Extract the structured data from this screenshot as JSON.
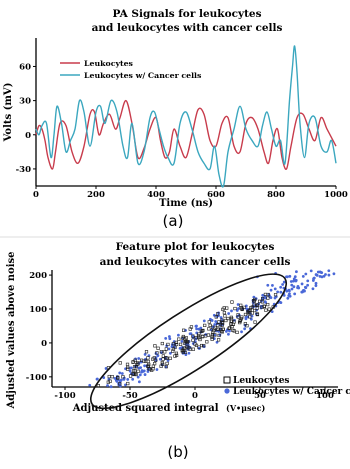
{
  "chart_data": [
    {
      "type": "line",
      "panel_label": "(a)",
      "title": [
        "PA Signals for leukocytes",
        "and leukocytes with cancer cells"
      ],
      "xlabel": "Time (ns)",
      "ylabel": "Volts (mV)",
      "xlim": [
        0,
        1000
      ],
      "ylim": [
        -45,
        85
      ],
      "xticks": [
        0,
        200,
        400,
        600,
        800,
        1000
      ],
      "yticks": [
        -30,
        0,
        30,
        60
      ],
      "legend_position": "top-left",
      "colors": {
        "leukocytes": "#c83c4c",
        "cancer": "#3ba7bf"
      },
      "series": [
        {
          "name": "Leukocytes",
          "x": [
            0,
            10,
            20,
            30,
            40,
            55,
            65,
            80,
            100,
            120,
            140,
            160,
            180,
            195,
            210,
            225,
            245,
            265,
            280,
            300,
            320,
            340,
            360,
            380,
            400,
            415,
            430,
            445,
            460,
            480,
            500,
            520,
            540,
            560,
            580,
            600,
            620,
            640,
            660,
            680,
            700,
            720,
            740,
            760,
            775,
            790,
            805,
            820,
            835,
            850,
            870,
            890,
            910,
            930,
            950,
            970,
            990,
            1000
          ],
          "y": [
            0,
            8,
            5,
            -5,
            -20,
            -30,
            -15,
            10,
            8,
            -15,
            -25,
            -10,
            18,
            20,
            0,
            10,
            18,
            5,
            15,
            30,
            10,
            -20,
            -12,
            5,
            15,
            -5,
            -20,
            -15,
            5,
            -10,
            -20,
            0,
            22,
            18,
            -5,
            -10,
            10,
            15,
            -10,
            -15,
            10,
            15,
            5,
            -15,
            -25,
            -5,
            5,
            -20,
            -30,
            -10,
            15,
            18,
            5,
            -5,
            15,
            5,
            -5,
            -10
          ]
        },
        {
          "name": "Leukocytes w/ Cancer cells",
          "x": [
            0,
            10,
            20,
            35,
            50,
            60,
            70,
            85,
            100,
            115,
            130,
            145,
            160,
            180,
            200,
            215,
            230,
            250,
            270,
            290,
            305,
            320,
            340,
            360,
            380,
            395,
            410,
            425,
            440,
            460,
            480,
            500,
            520,
            540,
            560,
            580,
            595,
            610,
            625,
            640,
            660,
            680,
            700,
            720,
            740,
            755,
            770,
            785,
            800,
            815,
            830,
            845,
            855,
            862,
            870,
            880,
            895,
            910,
            930,
            950,
            970,
            985,
            1000
          ],
          "y": [
            5,
            0,
            8,
            10,
            -20,
            0,
            25,
            10,
            -15,
            -5,
            5,
            30,
            20,
            -10,
            20,
            25,
            10,
            30,
            20,
            -10,
            -20,
            10,
            -25,
            -15,
            15,
            20,
            5,
            -10,
            -20,
            -25,
            10,
            20,
            5,
            -15,
            -25,
            -30,
            -10,
            -35,
            -45,
            -15,
            5,
            25,
            5,
            -5,
            -10,
            8,
            20,
            5,
            -10,
            -5,
            -25,
            30,
            60,
            78,
            55,
            10,
            -20,
            10,
            15,
            -10,
            -15,
            -5,
            -25
          ]
        }
      ]
    },
    {
      "type": "scatter",
      "panel_label": "(b)",
      "title": [
        "Feature plot for leukocytes",
        "and leukocytes with cancer cells"
      ],
      "xlabel": "Adjusted squared integral",
      "xlabel_unit": "(V•μsec)",
      "ylabel": "Adjusted values above noise",
      "xlim": [
        -110,
        110
      ],
      "ylim": [
        -130,
        215
      ],
      "xticks": [
        -100,
        -50,
        0,
        50,
        100
      ],
      "yticks": [
        -100,
        0,
        100,
        200
      ],
      "legend_position": "bottom-right",
      "colors": {
        "leukocytes": "#1a1a1a",
        "cancer": "#4a68d8"
      },
      "series": [
        {
          "name": "Leukocytes",
          "marker": "open-square",
          "trend": {
            "slope": 2.0,
            "x_range": [
              -70,
              55
            ],
            "spread": 38,
            "count": 230
          }
        },
        {
          "name": "Leukocytes w/ Cancer cells",
          "marker": "filled-circle",
          "trend": {
            "slope": 2.0,
            "x_range": [
              -75,
              105
            ],
            "spread": 40,
            "count": 300
          }
        }
      ],
      "ellipse": {
        "center": [
          -5,
          5
        ],
        "semi_axes_data": [
          75,
          44
        ],
        "angle_deg": 33
      }
    }
  ]
}
